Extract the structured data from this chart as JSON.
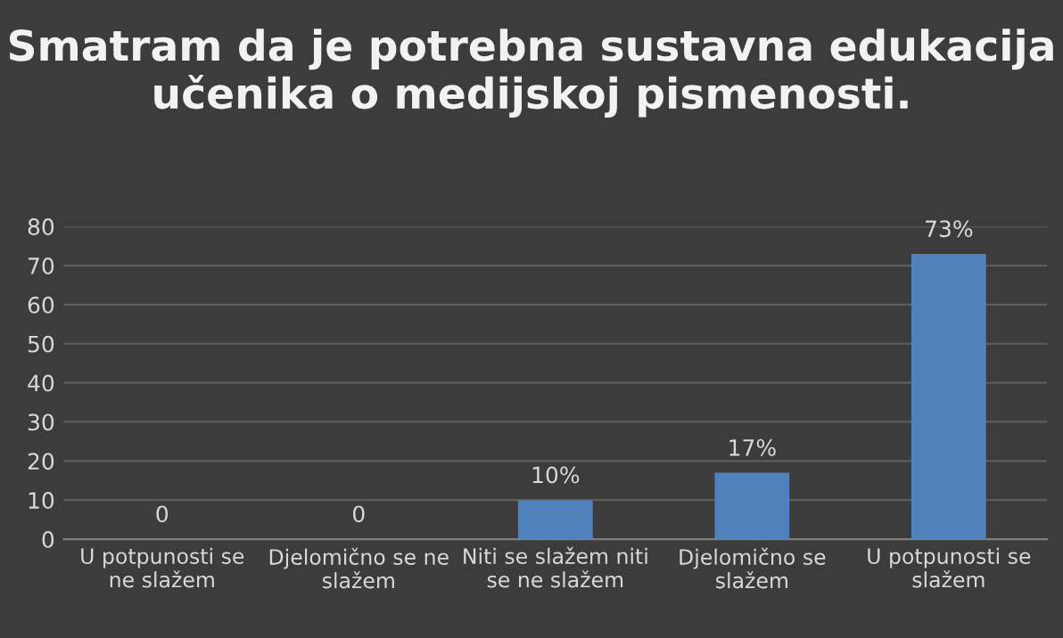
{
  "chart_data": {
    "type": "bar",
    "title": "Smatram da je potrebna sustavna edukacija učenika o medijskoj pismenosti.",
    "categories": [
      "U potpunosti se\nne slažem",
      "Djelomično se ne\nslažem",
      "Niti se slažem niti\nse ne slažem",
      "Djelomično se\nslažem",
      "U potpunosti se\nslažem"
    ],
    "values": [
      0,
      0,
      10,
      17,
      73
    ],
    "value_labels": [
      "0",
      "0",
      "10%",
      "17%",
      "73%"
    ],
    "color": "#4f81bd",
    "ylim": [
      0,
      80
    ],
    "yticks": [
      0,
      10,
      20,
      30,
      40,
      50,
      60,
      70,
      80
    ],
    "grid": "y"
  }
}
